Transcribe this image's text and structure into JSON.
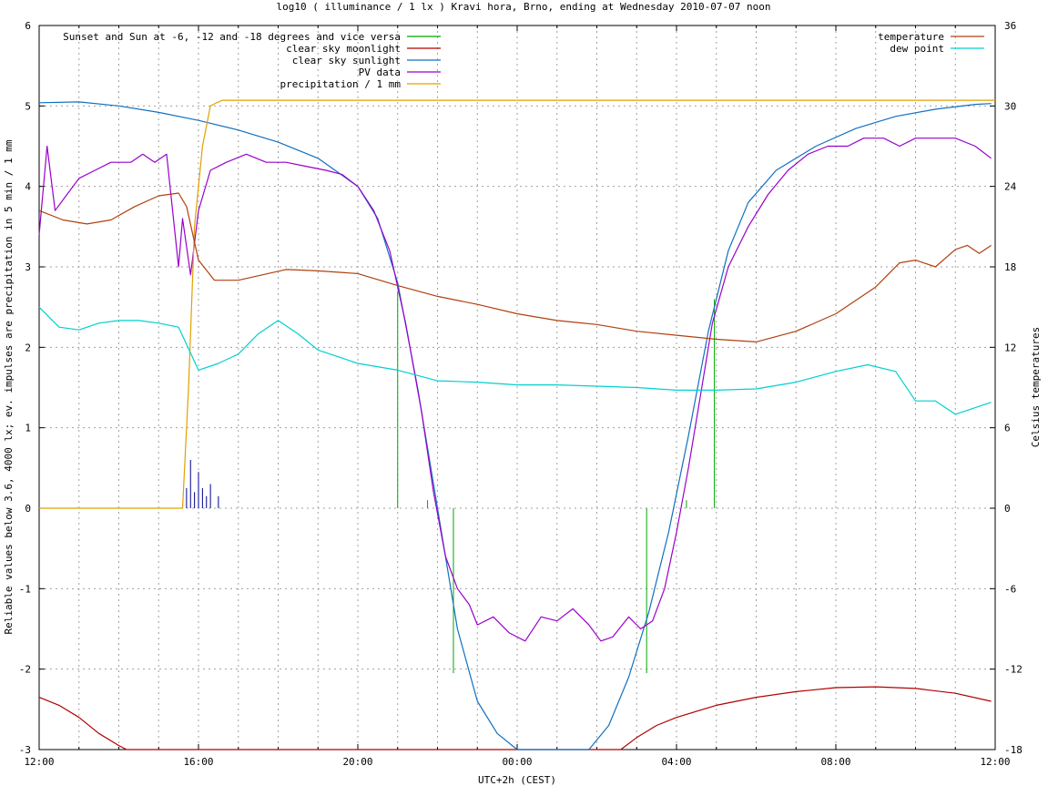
{
  "chart_data": {
    "type": "line",
    "title": "log10 ( illuminance / 1 lx ) Kravi hora, Brno, ending at Wednesday 2010-07-07 noon",
    "xlabel": "UTC+2h (CEST)",
    "ylabel": "Reliable values below 3.6, 4000 lx; ev. impulses are precipitation in 5 min / 1 mm",
    "y2label": "Celsius temperatures",
    "xlim": [
      12,
      36
    ],
    "ylim": [
      -3,
      6
    ],
    "y2lim": [
      -18,
      36
    ],
    "grid": true,
    "x_ticks": [
      {
        "x": 12,
        "label": "12:00"
      },
      {
        "x": 16,
        "label": "16:00"
      },
      {
        "x": 20,
        "label": "20:00"
      },
      {
        "x": 24,
        "label": "00:00"
      },
      {
        "x": 28,
        "label": "04:00"
      },
      {
        "x": 32,
        "label": "08:00"
      },
      {
        "x": 36,
        "label": "12:00"
      }
    ],
    "y_ticks": [
      {
        "v": 6,
        "label": "6"
      },
      {
        "v": 5,
        "label": "5"
      },
      {
        "v": 4,
        "label": "4"
      },
      {
        "v": 3,
        "label": "3"
      },
      {
        "v": 2,
        "label": "2"
      },
      {
        "v": 1,
        "label": "1"
      },
      {
        "v": 0,
        "label": "0"
      },
      {
        "v": -1,
        "label": "-1"
      },
      {
        "v": -2,
        "label": "-2"
      },
      {
        "v": -3,
        "label": "-3"
      }
    ],
    "y2_ticks": [
      {
        "v": 36,
        "label": "36"
      },
      {
        "v": 30,
        "label": "30"
      },
      {
        "v": 24,
        "label": "24"
      },
      {
        "v": 18,
        "label": "18"
      },
      {
        "v": 12,
        "label": "12"
      },
      {
        "v": 6,
        "label": "6"
      },
      {
        "v": 0,
        "label": "0"
      },
      {
        "v": -6,
        "label": "-6"
      },
      {
        "v": -12,
        "label": "-12"
      },
      {
        "v": -18,
        "label": "-18"
      }
    ],
    "legend_left_placement": "top-left",
    "legend_right_placement": "top-right",
    "twilight_events": {
      "name": "Sunset and Sun at -6, -12 and -18 degrees and vice versa",
      "color": "#00aa00",
      "lines": [
        [
          21.0,
          2.7
        ],
        [
          21.75,
          0.1
        ],
        [
          22.4,
          -2.05
        ],
        [
          24.65,
          0
        ],
        [
          25.4,
          0
        ],
        [
          27.25,
          -2.05
        ],
        [
          28.25,
          0.1
        ],
        [
          28.95,
          2.6
        ]
      ]
    },
    "series": [
      {
        "name": "clear sky moonlight",
        "color": "#b00000",
        "axis": "y",
        "points": [
          [
            12,
            -2.35
          ],
          [
            12.5,
            -2.45
          ],
          [
            13,
            -2.6
          ],
          [
            13.5,
            -2.8
          ],
          [
            14,
            -2.95
          ],
          [
            14.2,
            -3.0
          ],
          [
            26.6,
            -3.0
          ],
          [
            27,
            -2.85
          ],
          [
            27.5,
            -2.7
          ],
          [
            28,
            -2.6
          ],
          [
            29,
            -2.45
          ],
          [
            30,
            -2.35
          ],
          [
            31,
            -2.28
          ],
          [
            32,
            -2.23
          ],
          [
            33,
            -2.22
          ],
          [
            34,
            -2.24
          ],
          [
            35,
            -2.3
          ],
          [
            35.9,
            -2.4
          ]
        ]
      },
      {
        "name": "clear sky sunlight",
        "color": "#1070c0",
        "axis": "y",
        "points": [
          [
            12,
            5.04
          ],
          [
            13,
            5.05
          ],
          [
            14,
            5.0
          ],
          [
            15,
            4.92
          ],
          [
            16,
            4.82
          ],
          [
            17,
            4.7
          ],
          [
            18,
            4.55
          ],
          [
            19,
            4.35
          ],
          [
            20,
            4.0
          ],
          [
            20.5,
            3.6
          ],
          [
            21,
            2.8
          ],
          [
            21.5,
            1.5
          ],
          [
            22,
            0.0
          ],
          [
            22.5,
            -1.5
          ],
          [
            23,
            -2.4
          ],
          [
            23.5,
            -2.8
          ],
          [
            24,
            -3.0
          ],
          [
            25.8,
            -3.0
          ],
          [
            26.3,
            -2.7
          ],
          [
            26.8,
            -2.1
          ],
          [
            27.3,
            -1.3
          ],
          [
            27.8,
            -0.3
          ],
          [
            28.3,
            0.9
          ],
          [
            28.8,
            2.2
          ],
          [
            29.3,
            3.2
          ],
          [
            29.8,
            3.8
          ],
          [
            30.5,
            4.2
          ],
          [
            31.5,
            4.5
          ],
          [
            32.5,
            4.72
          ],
          [
            33.5,
            4.87
          ],
          [
            34.5,
            4.96
          ],
          [
            35.5,
            5.02
          ],
          [
            35.9,
            5.03
          ]
        ]
      },
      {
        "name": "PV data",
        "color": "#9900cc",
        "axis": "y",
        "points": [
          [
            12,
            3.4
          ],
          [
            12.2,
            4.5
          ],
          [
            12.4,
            3.7
          ],
          [
            12.7,
            3.9
          ],
          [
            13,
            4.1
          ],
          [
            13.4,
            4.2
          ],
          [
            13.8,
            4.3
          ],
          [
            14.3,
            4.3
          ],
          [
            14.6,
            4.4
          ],
          [
            14.9,
            4.3
          ],
          [
            15.2,
            4.4
          ],
          [
            15.5,
            3.0
          ],
          [
            15.6,
            3.6
          ],
          [
            15.8,
            2.9
          ],
          [
            16.0,
            3.7
          ],
          [
            16.3,
            4.2
          ],
          [
            16.7,
            4.3
          ],
          [
            17.2,
            4.4
          ],
          [
            17.7,
            4.3
          ],
          [
            18.2,
            4.3
          ],
          [
            18.7,
            4.25
          ],
          [
            19.2,
            4.2
          ],
          [
            19.6,
            4.15
          ],
          [
            20.0,
            4.0
          ],
          [
            20.4,
            3.7
          ],
          [
            20.8,
            3.2
          ],
          [
            21.2,
            2.3
          ],
          [
            21.6,
            1.2
          ],
          [
            21.9,
            0.2
          ],
          [
            22.2,
            -0.6
          ],
          [
            22.5,
            -1.0
          ],
          [
            22.8,
            -1.2
          ],
          [
            23.0,
            -1.45
          ],
          [
            23.4,
            -1.35
          ],
          [
            23.8,
            -1.55
          ],
          [
            24.2,
            -1.65
          ],
          [
            24.6,
            -1.35
          ],
          [
            25.0,
            -1.4
          ],
          [
            25.4,
            -1.25
          ],
          [
            25.8,
            -1.45
          ],
          [
            26.1,
            -1.65
          ],
          [
            26.4,
            -1.6
          ],
          [
            26.8,
            -1.35
          ],
          [
            27.1,
            -1.5
          ],
          [
            27.4,
            -1.4
          ],
          [
            27.7,
            -1.0
          ],
          [
            28.0,
            -0.3
          ],
          [
            28.3,
            0.5
          ],
          [
            28.6,
            1.4
          ],
          [
            28.9,
            2.3
          ],
          [
            29.3,
            3.0
          ],
          [
            29.8,
            3.5
          ],
          [
            30.3,
            3.9
          ],
          [
            30.8,
            4.2
          ],
          [
            31.3,
            4.4
          ],
          [
            31.8,
            4.5
          ],
          [
            32.3,
            4.5
          ],
          [
            32.7,
            4.6
          ],
          [
            33.2,
            4.6
          ],
          [
            33.6,
            4.5
          ],
          [
            34.0,
            4.6
          ],
          [
            34.5,
            4.6
          ],
          [
            35.0,
            4.6
          ],
          [
            35.5,
            4.5
          ],
          [
            35.9,
            4.35
          ]
        ]
      },
      {
        "name": "precipitation / 1 mm",
        "color": "#e0a000",
        "axis": "y",
        "points": [
          [
            12,
            0.0
          ],
          [
            15.6,
            0.0
          ],
          [
            15.75,
            1.5
          ],
          [
            15.9,
            3.5
          ],
          [
            16.1,
            4.5
          ],
          [
            16.3,
            5.0
          ],
          [
            16.5,
            5.05
          ],
          [
            16.6,
            5.07
          ],
          [
            36,
            5.07
          ]
        ]
      },
      {
        "name": "temperature",
        "color": "#b04010",
        "axis": "y2",
        "points": [
          [
            12,
            22.2
          ],
          [
            12.6,
            21.5
          ],
          [
            13.2,
            21.2
          ],
          [
            13.8,
            21.5
          ],
          [
            14.4,
            22.5
          ],
          [
            15.0,
            23.3
          ],
          [
            15.5,
            23.5
          ],
          [
            15.7,
            22.5
          ],
          [
            16.0,
            18.5
          ],
          [
            16.4,
            17.0
          ],
          [
            17.0,
            17.0
          ],
          [
            17.6,
            17.4
          ],
          [
            18.2,
            17.8
          ],
          [
            19.0,
            17.7
          ],
          [
            20.0,
            17.5
          ],
          [
            21.0,
            16.6
          ],
          [
            22.0,
            15.8
          ],
          [
            23.0,
            15.2
          ],
          [
            24.0,
            14.5
          ],
          [
            25.0,
            14.0
          ],
          [
            26.0,
            13.7
          ],
          [
            27.0,
            13.2
          ],
          [
            28.0,
            12.9
          ],
          [
            29.0,
            12.6
          ],
          [
            30.0,
            12.4
          ],
          [
            31.0,
            13.2
          ],
          [
            32.0,
            14.5
          ],
          [
            33.0,
            16.5
          ],
          [
            33.6,
            18.3
          ],
          [
            34.0,
            18.5
          ],
          [
            34.5,
            18.0
          ],
          [
            35.0,
            19.3
          ],
          [
            35.3,
            19.6
          ],
          [
            35.6,
            19.0
          ],
          [
            35.9,
            19.6
          ]
        ]
      },
      {
        "name": "dew point",
        "color": "#00d0d0",
        "axis": "y2",
        "points": [
          [
            12,
            15.0
          ],
          [
            12.5,
            13.5
          ],
          [
            13,
            13.3
          ],
          [
            13.5,
            13.8
          ],
          [
            14,
            14.0
          ],
          [
            14.5,
            14.0
          ],
          [
            15.0,
            13.8
          ],
          [
            15.5,
            13.5
          ],
          [
            16.0,
            10.3
          ],
          [
            16.5,
            10.8
          ],
          [
            17.0,
            11.5
          ],
          [
            17.5,
            13.0
          ],
          [
            18.0,
            14.0
          ],
          [
            18.5,
            13.0
          ],
          [
            19.0,
            11.8
          ],
          [
            20.0,
            10.8
          ],
          [
            21.0,
            10.3
          ],
          [
            22.0,
            9.5
          ],
          [
            23.0,
            9.4
          ],
          [
            24.0,
            9.2
          ],
          [
            25.0,
            9.2
          ],
          [
            26.0,
            9.1
          ],
          [
            27.0,
            9.0
          ],
          [
            28.0,
            8.8
          ],
          [
            29.0,
            8.8
          ],
          [
            30.0,
            8.9
          ],
          [
            31.0,
            9.4
          ],
          [
            32.0,
            10.2
          ],
          [
            32.8,
            10.7
          ],
          [
            33.5,
            10.2
          ],
          [
            34.0,
            8.0
          ],
          [
            34.5,
            8.0
          ],
          [
            35.0,
            7.0
          ],
          [
            35.5,
            7.5
          ],
          [
            35.9,
            7.9
          ]
        ]
      }
    ],
    "precipitation_impulses": {
      "color": "#000090",
      "values": [
        [
          15.7,
          0.25
        ],
        [
          15.8,
          0.6
        ],
        [
          15.9,
          0.2
        ],
        [
          16.0,
          0.45
        ],
        [
          16.1,
          0.25
        ],
        [
          16.2,
          0.15
        ],
        [
          16.3,
          0.3
        ],
        [
          16.5,
          0.15
        ]
      ]
    }
  }
}
